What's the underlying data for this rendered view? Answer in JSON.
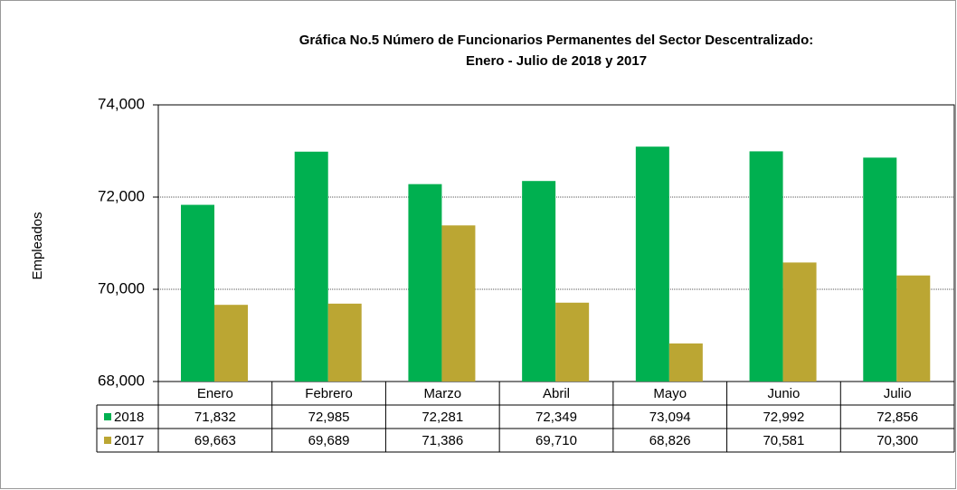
{
  "chart_data": {
    "type": "bar",
    "title": "Gráfica No.5 Número de Funcionarios Permanentes del Sector Descentralizado:",
    "subtitle": "Enero - Julio de 2018 y 2017",
    "y_label": "Empleados",
    "categories": [
      "Enero",
      "Febrero",
      "Marzo",
      "Abril",
      "Mayo",
      "Junio",
      "Julio"
    ],
    "series": [
      {
        "name": "2018",
        "color": "#00b050",
        "values": [
          71832,
          72985,
          72281,
          72349,
          73094,
          72992,
          72856
        ],
        "value_labels": [
          "71,832",
          "72,985",
          "72,281",
          "72,349",
          "73,094",
          "72,992",
          "72,856"
        ]
      },
      {
        "name": "2017",
        "color": "#bba633",
        "values": [
          69663,
          69689,
          71386,
          69710,
          68826,
          70581,
          70300
        ],
        "value_labels": [
          "69,663",
          "69,689",
          "71,386",
          "69,710",
          "68,826",
          "70,581",
          "70,300"
        ]
      }
    ],
    "ylim": [
      68000,
      74000
    ],
    "yticks": [
      {
        "value": 68000,
        "label": "68,000"
      },
      {
        "value": 70000,
        "label": "70,000"
      },
      {
        "value": 72000,
        "label": "72,000"
      },
      {
        "value": 74000,
        "label": "74,000"
      }
    ],
    "grid": true
  }
}
